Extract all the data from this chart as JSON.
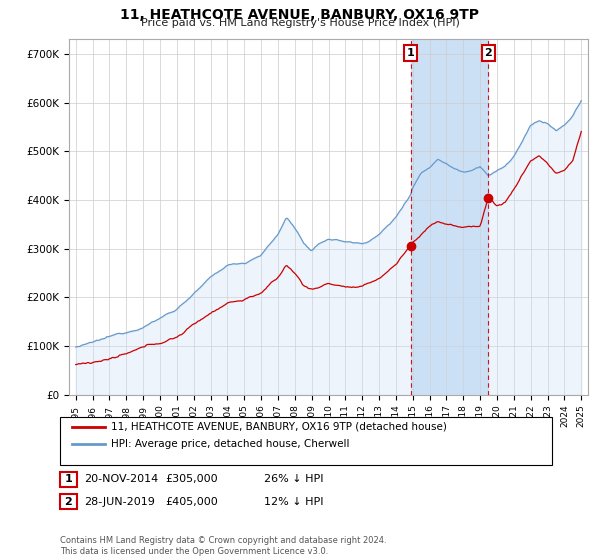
{
  "title": "11, HEATHCOTE AVENUE, BANBURY, OX16 9TP",
  "subtitle": "Price paid vs. HM Land Registry's House Price Index (HPI)",
  "ylabel_ticks": [
    "£0",
    "£100K",
    "£200K",
    "£300K",
    "£400K",
    "£500K",
    "£600K",
    "£700K"
  ],
  "ytick_values": [
    0,
    100000,
    200000,
    300000,
    400000,
    500000,
    600000,
    700000
  ],
  "ylim": [
    0,
    730000
  ],
  "xlim_start": 1994.6,
  "xlim_end": 2025.4,
  "marker1": {
    "date_num": 2014.88,
    "value": 305000,
    "label": "1",
    "date_str": "20-NOV-2014",
    "price": "£305,000",
    "hpi_diff": "26% ↓ HPI"
  },
  "marker2": {
    "date_num": 2019.48,
    "value": 405000,
    "label": "2",
    "date_str": "28-JUN-2019",
    "price": "£405,000",
    "hpi_diff": "12% ↓ HPI"
  },
  "property_line_color": "#cc0000",
  "hpi_line_color": "#6699cc",
  "hpi_fill_color": "#cce0f5",
  "dashed_line_color": "#cc0000",
  "legend_property_label": "11, HEATHCOTE AVENUE, BANBURY, OX16 9TP (detached house)",
  "legend_hpi_label": "HPI: Average price, detached house, Cherwell",
  "footnote": "Contains HM Land Registry data © Crown copyright and database right 2024.\nThis data is licensed under the Open Government Licence v3.0."
}
